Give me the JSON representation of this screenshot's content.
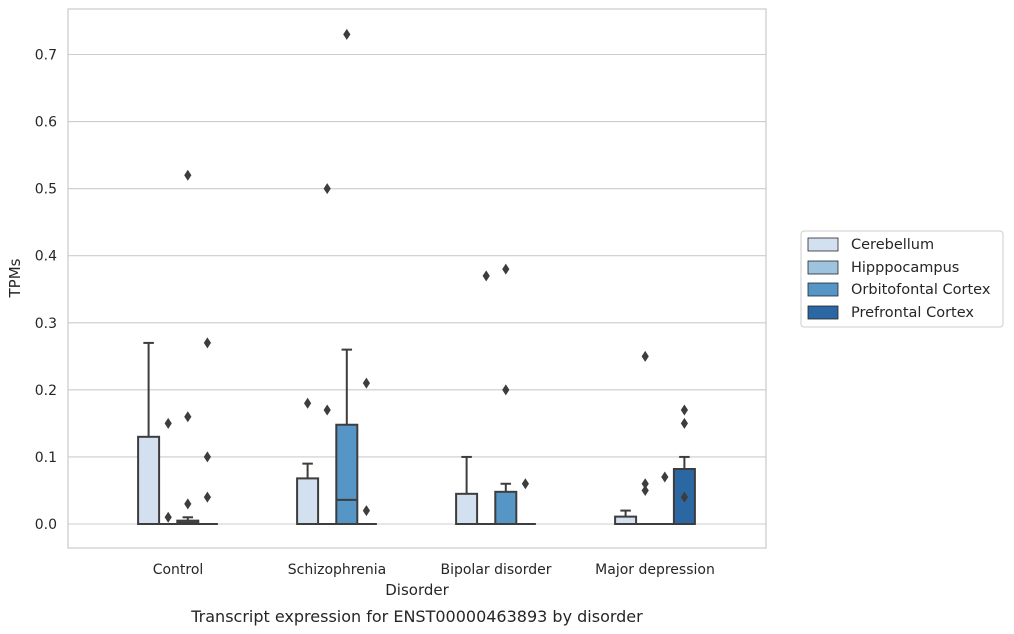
{
  "chart_data": {
    "type": "boxplot",
    "caption": "Transcript expression for ENST00000463893 by disorder",
    "xlabel": "Disorder",
    "ylabel": "TPMs",
    "ylim": [
      -0.035,
      0.77
    ],
    "yticks": [
      "0.0",
      "0.1",
      "0.2",
      "0.3",
      "0.4",
      "0.5",
      "0.6",
      "0.7"
    ],
    "ytick_values": [
      0,
      0.1,
      0.2,
      0.3,
      0.4,
      0.5,
      0.6,
      0.7
    ],
    "grid": "horizontal",
    "legend_position": "right",
    "categories": [
      "Control",
      "Schizophrenia",
      "Bipolar disorder",
      "Major depression"
    ],
    "series": [
      {
        "name": "Cerebellum",
        "color": "#d2e0f0",
        "boxes": [
          {
            "min": 0,
            "q1": 0,
            "median": 0,
            "q3": 0.13,
            "max": 0.27,
            "outliers": []
          },
          {
            "min": 0,
            "q1": 0,
            "median": 0,
            "q3": 0.068,
            "max": 0.09,
            "outliers": [
              0.18
            ]
          },
          {
            "min": 0,
            "q1": 0,
            "median": 0,
            "q3": 0.045,
            "max": 0.1,
            "outliers": []
          },
          {
            "min": 0,
            "q1": 0,
            "median": 0,
            "q3": 0.011,
            "max": 0.02,
            "outliers": []
          }
        ]
      },
      {
        "name": "Hipppocampus",
        "color": "#9dc3df",
        "boxes": [
          {
            "min": 0,
            "q1": 0,
            "median": 0,
            "q3": 0,
            "max": 0,
            "outliers": [
              0.01,
              0.15
            ]
          },
          {
            "min": 0,
            "q1": 0,
            "median": 0,
            "q3": 0,
            "max": 0,
            "outliers": [
              0.17,
              0.5
            ]
          },
          {
            "min": 0,
            "q1": 0,
            "median": 0,
            "q3": 0,
            "max": 0,
            "outliers": [
              0.37
            ]
          },
          {
            "min": 0,
            "q1": 0,
            "median": 0,
            "q3": 0,
            "max": 0,
            "outliers": [
              0.05,
              0.06,
              0.25
            ]
          }
        ]
      },
      {
        "name": "Orbitofontal Cortex",
        "color": "#5596c6",
        "boxes": [
          {
            "min": 0,
            "q1": 0,
            "median": 0.002,
            "q3": 0.005,
            "max": 0.01,
            "outliers": [
              0.03,
              0.16,
              0.52
            ]
          },
          {
            "min": 0,
            "q1": 0,
            "median": 0.036,
            "q3": 0.148,
            "max": 0.26,
            "outliers": [
              0.73
            ]
          },
          {
            "min": 0,
            "q1": 0,
            "median": 0,
            "q3": 0.048,
            "max": 0.06,
            "outliers": [
              0.2,
              0.38
            ]
          },
          {
            "min": 0,
            "q1": 0,
            "median": 0,
            "q3": 0,
            "max": 0,
            "outliers": [
              0.07
            ]
          }
        ]
      },
      {
        "name": "Prefrontal Cortex",
        "color": "#2b67a3",
        "boxes": [
          {
            "min": 0,
            "q1": 0,
            "median": 0,
            "q3": 0,
            "max": 0,
            "outliers": [
              0.04,
              0.1,
              0.27
            ]
          },
          {
            "min": 0,
            "q1": 0,
            "median": 0,
            "q3": 0,
            "max": 0,
            "outliers": [
              0.02,
              0.21
            ]
          },
          {
            "min": 0,
            "q1": 0,
            "median": 0,
            "q3": 0,
            "max": 0,
            "outliers": [
              0.06
            ]
          },
          {
            "min": 0,
            "q1": 0,
            "median": 0,
            "q3": 0.082,
            "max": 0.1,
            "outliers": [
              0.04,
              0.15,
              0.17
            ]
          }
        ]
      }
    ]
  }
}
